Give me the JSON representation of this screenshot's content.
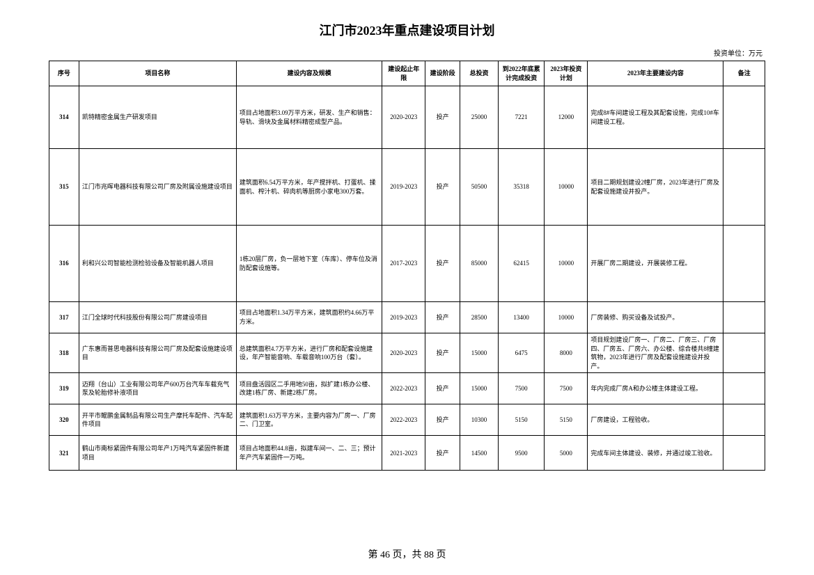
{
  "title": "江门市2023年重点建设项目计划",
  "unit_note": "投资单位：万元",
  "columns": [
    "序号",
    "项目名称",
    "建设内容及规模",
    "建设起止年限",
    "建设阶段",
    "总投资",
    "到2022年底累计完成投资",
    "2023年投资计划",
    "2023年主要建设内容",
    "备注"
  ],
  "rows": [
    {
      "seq": "314",
      "name": "凯特精密金属生产研发项目",
      "content": "项目占地面积3.09万平方米，研发、生产和销售：导轨、滑块及金属材料精密成型产品。",
      "period": "2020-2023",
      "phase": "投产",
      "total": "25000",
      "done": "7221",
      "plan": "12000",
      "main": "完成8#车间建设工程及其配套设施，完成10#车间建设工程。",
      "remark": "",
      "h": "h-90"
    },
    {
      "seq": "315",
      "name": "江门市兆晖电器科技有限公司厂房及附属设施建设项目",
      "content": "建筑面积6.54万平方米，年产搅拌机、打蛋机、揉面机、榨汁机、碎肉机等厨房小家电300万套。",
      "period": "2019-2023",
      "phase": "投产",
      "total": "50500",
      "done": "35318",
      "plan": "10000",
      "main": "项目二期规划建设2幢厂房，2023年进行厂房及配套设施建设并投产。",
      "remark": "",
      "h": "h-110"
    },
    {
      "seq": "316",
      "name": "利和兴公司智能检测检验设备及智能机器人项目",
      "content": "1栋20层厂房，负一层地下室（车库）、停车位及消防配套设施等。",
      "period": "2017-2023",
      "phase": "投产",
      "total": "85000",
      "done": "62415",
      "plan": "10000",
      "main": "开展厂房二期建设，开展装修工程。",
      "remark": "",
      "h": "h-110"
    },
    {
      "seq": "317",
      "name": "江门全球时代科技股份有限公司厂房建设项目",
      "content": "项目占地面积1.34万平方米，建筑面积约4.66万平方米。",
      "period": "2019-2023",
      "phase": "投产",
      "total": "28500",
      "done": "13400",
      "plan": "10000",
      "main": "厂房装修、购买设备及试投产。",
      "remark": "",
      "h": "h-45"
    },
    {
      "seq": "318",
      "name": "广东惠而普思电器科技有限公司厂房及配套设施建设项目",
      "content": "总建筑面积4.7万平方米，进行厂房和配套设施建设，年产智能音响、车载音响100万台（套）。",
      "period": "2020-2023",
      "phase": "投产",
      "total": "15000",
      "done": "6475",
      "plan": "8000",
      "main": "项目规划建设厂房一、厂房二、厂房三、厂房四、厂房五、厂房六、办公楼、综合楼共8幢建筑物，2023年进行厂房及配套设施建设并投产。",
      "remark": "",
      "h": "h-55"
    },
    {
      "seq": "319",
      "name": "迈翔（台山）工业有限公司年产600万台汽车车载充气泵及轮胎修补液项目",
      "content": "项目盘活园区二手用地50亩，拟扩建1栋办公楼、改建1栋厂房、新建2栋厂房。",
      "period": "2022-2023",
      "phase": "投产",
      "total": "15000",
      "done": "7500",
      "plan": "7500",
      "main": "年内完成厂房A和办公楼主体建设工程。",
      "remark": "",
      "h": "h-45"
    },
    {
      "seq": "320",
      "name": "开平市鲲鹏金属制品有限公司生产摩托车配件、汽车配件项目",
      "content": "建筑面积1.63万平方米，主要内容为厂房一、厂房二、门卫室。",
      "period": "2022-2023",
      "phase": "投产",
      "total": "10300",
      "done": "5150",
      "plan": "5150",
      "main": "厂房建设，工程验收。",
      "remark": "",
      "h": "h-45"
    },
    {
      "seq": "321",
      "name": "鹤山市南标紧固件有限公司年产1万吨汽车紧固件新建项目",
      "content": "项目占地面积44.8亩，拟建车间一、二、三；预计年产汽车紧固件一万吨。",
      "period": "2021-2023",
      "phase": "投产",
      "total": "14500",
      "done": "9500",
      "plan": "5000",
      "main": "完成车间主体建设、装修，并通过竣工验收。",
      "remark": "",
      "h": "h-50"
    }
  ],
  "footer": "第 46 页，共 88 页"
}
